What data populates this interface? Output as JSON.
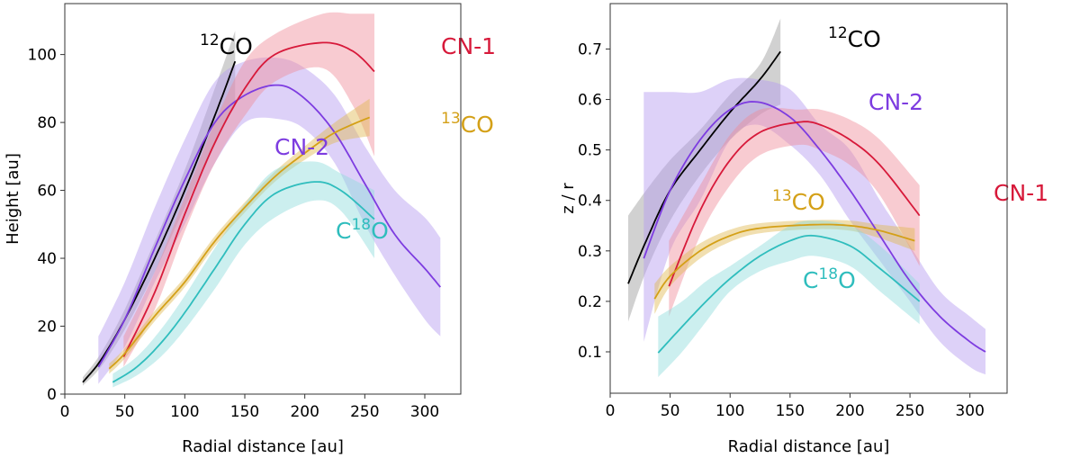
{
  "chart_data": [
    {
      "type": "line",
      "title": "",
      "xlabel": "Radial distance [au]",
      "ylabel": "Height [au]",
      "xlim": [
        0,
        330
      ],
      "ylim": [
        0,
        115
      ],
      "xticks": [
        0,
        50,
        100,
        150,
        200,
        250,
        300
      ],
      "yticks": [
        0,
        20,
        40,
        60,
        80,
        100
      ],
      "grid": false,
      "series": [
        {
          "name": "12CO",
          "label": {
            "pre": "",
            "sup": "12",
            "post": "CO"
          },
          "color": "#000000",
          "band_color": "#9a9a9a",
          "x": [
            15,
            30,
            50,
            75,
            100,
            125,
            142
          ],
          "y": [
            3.5,
            10,
            22,
            40,
            60,
            82,
            98
          ],
          "lower": [
            2.5,
            8,
            19,
            36,
            55,
            74,
            85
          ],
          "upper": [
            5,
            12,
            25,
            45,
            66,
            90,
            107
          ]
        },
        {
          "name": "CN-2",
          "label": {
            "pre": "CN-2",
            "sup": "",
            "post": ""
          },
          "color": "#7d3ce0",
          "band_color": "#b49af0",
          "x": [
            28,
            50,
            75,
            100,
            125,
            150,
            178,
            200,
            225,
            250,
            275,
            300,
            313
          ],
          "y": [
            8,
            22,
            43,
            63,
            80,
            88,
            91,
            87,
            77,
            62,
            47,
            37,
            31.5
          ],
          "lower": [
            3,
            14,
            33,
            50,
            68,
            80,
            81,
            78,
            68,
            50,
            35,
            22,
            17
          ],
          "upper": [
            17,
            33,
            55,
            75,
            92,
            98,
            99,
            96,
            88,
            73,
            60,
            52,
            46
          ]
        },
        {
          "name": "CN-1",
          "label": {
            "pre": "CN-1",
            "sup": "",
            "post": ""
          },
          "color": "#d7193a",
          "band_color": "#f08c9a",
          "x": [
            49,
            75,
            100,
            125,
            150,
            175,
            215,
            240,
            258
          ],
          "y": [
            11,
            30,
            53,
            74,
            90,
            100,
            103.5,
            101,
            95
          ],
          "lower": [
            8,
            25,
            48,
            68,
            82,
            92,
            96,
            85,
            70
          ],
          "upper": [
            17,
            36,
            58,
            80,
            98,
            106,
            112,
            112,
            112
          ]
        },
        {
          "name": "13CO",
          "label": {
            "pre": "",
            "sup": "13",
            "post": "CO"
          },
          "color": "#d4a017",
          "band_color": "#e0b850",
          "x": [
            37,
            50,
            75,
            100,
            125,
            150,
            175,
            200,
            225,
            254
          ],
          "y": [
            7.5,
            12,
            23,
            33,
            45,
            55,
            64,
            71,
            77,
            81.5
          ],
          "lower": [
            6,
            10.5,
            21.5,
            31.5,
            43.5,
            53.5,
            62.5,
            69,
            74,
            76
          ],
          "upper": [
            9,
            13.5,
            24.5,
            34.5,
            46.5,
            56.5,
            65.5,
            73,
            80,
            87
          ]
        },
        {
          "name": "C18O",
          "label": {
            "pre": "C",
            "sup": "18",
            "post": "O"
          },
          "color": "#2fbdbd",
          "band_color": "#8edcdc",
          "x": [
            40,
            60,
            80,
            100,
            125,
            150,
            175,
            208,
            230,
            258
          ],
          "y": [
            3.5,
            8,
            15,
            24,
            37,
            50,
            59,
            62.5,
            60,
            51.5
          ],
          "lower": [
            2,
            5.5,
            11,
            19,
            31,
            44,
            52,
            57,
            54,
            40
          ],
          "upper": [
            6,
            11,
            19,
            29,
            43,
            56,
            66,
            68.5,
            65,
            60
          ]
        }
      ]
    },
    {
      "type": "line",
      "title": "",
      "xlabel": "Radial distance [au]",
      "ylabel": "z / r",
      "xlim": [
        0,
        331
      ],
      "ylim": [
        0.018,
        0.79
      ],
      "xticks": [
        0,
        50,
        100,
        150,
        200,
        250,
        300
      ],
      "yticks": [
        0.1,
        0.2,
        0.3,
        0.4,
        0.5,
        0.6,
        0.7
      ],
      "grid": false,
      "series": [
        {
          "name": "12CO",
          "label": {
            "pre": "",
            "sup": "12",
            "post": "CO"
          },
          "color": "#000000",
          "band_color": "#9a9a9a",
          "x": [
            15,
            30,
            50,
            75,
            100,
            125,
            142
          ],
          "y": [
            0.235,
            0.32,
            0.42,
            0.5,
            0.575,
            0.64,
            0.695
          ],
          "lower": [
            0.16,
            0.26,
            0.36,
            0.45,
            0.52,
            0.57,
            0.59
          ],
          "upper": [
            0.37,
            0.42,
            0.48,
            0.54,
            0.61,
            0.67,
            0.76
          ]
        },
        {
          "name": "CN-2",
          "label": {
            "pre": "CN-2",
            "sup": "",
            "post": ""
          },
          "color": "#7d3ce0",
          "band_color": "#b49af0",
          "x": [
            28,
            50,
            75,
            100,
            123,
            150,
            175,
            200,
            225,
            250,
            275,
            300,
            313
          ],
          "y": [
            0.285,
            0.42,
            0.52,
            0.58,
            0.595,
            0.565,
            0.5,
            0.42,
            0.33,
            0.24,
            0.17,
            0.12,
            0.1
          ],
          "lower": [
            0.12,
            0.3,
            0.4,
            0.52,
            0.55,
            0.51,
            0.45,
            0.36,
            0.28,
            0.2,
            0.12,
            0.07,
            0.055
          ],
          "upper": [
            0.615,
            0.615,
            0.615,
            0.64,
            0.64,
            0.62,
            0.55,
            0.5,
            0.4,
            0.31,
            0.22,
            0.17,
            0.145
          ]
        },
        {
          "name": "CN-1",
          "label": {
            "pre": "CN-1",
            "sup": "",
            "post": ""
          },
          "color": "#d7193a",
          "band_color": "#f08c9a",
          "x": [
            49,
            75,
            100,
            125,
            157,
            175,
            200,
            225,
            258
          ],
          "y": [
            0.23,
            0.38,
            0.48,
            0.535,
            0.555,
            0.55,
            0.52,
            0.47,
            0.37
          ],
          "lower": [
            0.17,
            0.33,
            0.43,
            0.49,
            0.51,
            0.5,
            0.47,
            0.41,
            0.27
          ],
          "upper": [
            0.32,
            0.43,
            0.53,
            0.58,
            0.58,
            0.58,
            0.56,
            0.52,
            0.43
          ]
        },
        {
          "name": "13CO",
          "label": {
            "pre": "",
            "sup": "13",
            "post": "CO"
          },
          "color": "#d4a017",
          "band_color": "#e0b850",
          "x": [
            37,
            50,
            75,
            100,
            125,
            170,
            200,
            225,
            254
          ],
          "y": [
            0.205,
            0.25,
            0.3,
            0.33,
            0.345,
            0.352,
            0.35,
            0.34,
            0.32
          ],
          "lower": [
            0.175,
            0.23,
            0.285,
            0.318,
            0.335,
            0.343,
            0.34,
            0.325,
            0.3
          ],
          "upper": [
            0.235,
            0.27,
            0.315,
            0.342,
            0.355,
            0.361,
            0.36,
            0.352,
            0.345
          ]
        },
        {
          "name": "C18O",
          "label": {
            "pre": "C",
            "sup": "18",
            "post": "O"
          },
          "color": "#2fbdbd",
          "band_color": "#8edcdc",
          "x": [
            40,
            60,
            80,
            100,
            125,
            150,
            170,
            200,
            225,
            258
          ],
          "y": [
            0.098,
            0.15,
            0.2,
            0.245,
            0.29,
            0.32,
            0.33,
            0.31,
            0.265,
            0.2
          ],
          "lower": [
            0.05,
            0.1,
            0.16,
            0.22,
            0.26,
            0.28,
            0.29,
            0.27,
            0.22,
            0.155
          ],
          "upper": [
            0.17,
            0.2,
            0.24,
            0.27,
            0.31,
            0.35,
            0.36,
            0.35,
            0.31,
            0.235
          ]
        }
      ]
    }
  ]
}
